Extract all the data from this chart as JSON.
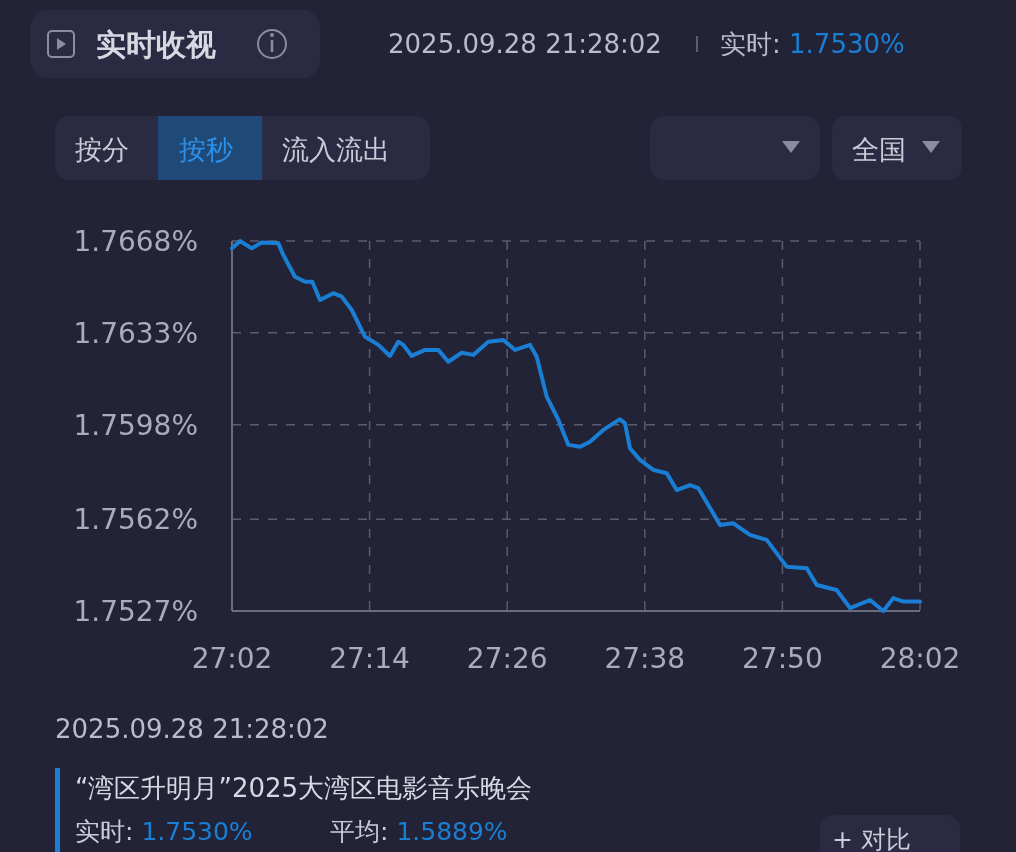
{
  "chart_data": {
    "type": "line",
    "title": "实时收视",
    "x": [
      27.0333,
      27.045,
      27.062,
      27.0765,
      27.1007,
      27.1078,
      27.1248,
      27.1395,
      27.15,
      27.1612,
      27.1805,
      27.1928,
      27.2073,
      27.2267,
      27.246,
      27.263,
      27.275,
      27.2823,
      27.2945,
      27.3138,
      27.3332,
      27.3477,
      27.3672,
      27.384,
      27.4058,
      27.4277,
      27.4447,
      27.4665,
      27.4762,
      27.4907,
      27.5077,
      27.5222,
      27.5392,
      27.5537,
      27.573,
      27.5973,
      27.6045,
      27.6118,
      27.6263,
      27.6457,
      27.6652,
      27.6797,
      27.699,
      27.7112,
      27.7427,
      27.762,
      27.7862,
      27.8105,
      27.8395,
      27.8687,
      27.8832,
      27.9122,
      27.9317,
      27.9607,
      27.98,
      27.9945,
      28.009,
      28.0333
    ],
    "values": [
      1.76652,
      1.7668,
      1.76652,
      1.76674,
      1.76671,
      1.76627,
      1.76544,
      1.76525,
      1.76525,
      1.76455,
      1.76481,
      1.76468,
      1.76417,
      1.76315,
      1.76284,
      1.76242,
      1.76296,
      1.76284,
      1.76242,
      1.76265,
      1.76265,
      1.7622,
      1.76254,
      1.76246,
      1.76296,
      1.76303,
      1.76265,
      1.76284,
      1.76239,
      1.76087,
      1.75998,
      1.75903,
      1.75896,
      1.75915,
      1.7596,
      1.76001,
      1.75985,
      1.7589,
      1.75846,
      1.75808,
      1.75795,
      1.75731,
      1.7575,
      1.75738,
      1.75598,
      1.75604,
      1.7556,
      1.75541,
      1.75439,
      1.75433,
      1.75369,
      1.7535,
      1.75281,
      1.75312,
      1.7527,
      1.75319,
      1.75306,
      1.75306
    ],
    "color": "#1a7fd4",
    "xlim": [
      27.0333,
      28.0333
    ],
    "xticks": [
      {
        "value": 27.0333,
        "label": "27:02"
      },
      {
        "value": 27.2333,
        "label": "27:14"
      },
      {
        "value": 27.4333,
        "label": "27:26"
      },
      {
        "value": 27.6333,
        "label": "27:38"
      },
      {
        "value": 27.8333,
        "label": "27:50"
      },
      {
        "value": 28.0333,
        "label": "28:02"
      }
    ],
    "ylim": [
      1.7527,
      1.7668
    ],
    "yticks": [
      {
        "value": 1.7527,
        "label": "1.7527%"
      },
      {
        "value": 1.7562,
        "label": "1.7562%"
      },
      {
        "value": 1.7598,
        "label": "1.7598%"
      },
      {
        "value": 1.7633,
        "label": "1.7633%"
      },
      {
        "value": 1.7668,
        "label": "1.7668%"
      }
    ],
    "grid": true,
    "annotations": [
      "2025.09.28 21:28:02",
      "实时: 1.7530%",
      "按分",
      "按秒",
      "流入流出",
      "全国",
      "2025.09.28 21:28:02",
      "“湾区升明月”2025大湾区电影音乐晚会",
      "实时: 1.7530%",
      "平均: 1.5889%",
      "+ 对比"
    ]
  }
}
